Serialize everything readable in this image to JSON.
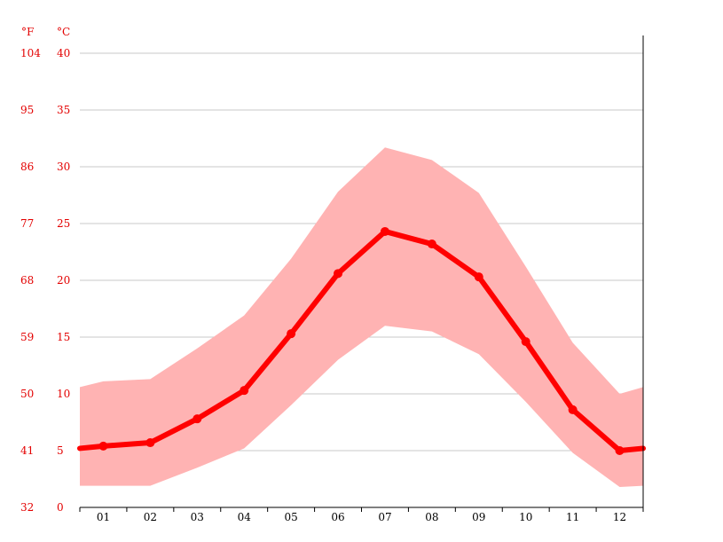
{
  "units": {
    "fahrenheit": "°F",
    "celsius": "°C"
  },
  "colors": {
    "line": "#ff0000",
    "band": "#ffb3b3",
    "axis_text": "#e30000",
    "grid": "#c8c8c8"
  },
  "chart_data": {
    "type": "area",
    "categories": [
      "01",
      "02",
      "03",
      "04",
      "05",
      "06",
      "07",
      "08",
      "09",
      "10",
      "11",
      "12"
    ],
    "y_ticks_c": [
      0,
      5,
      10,
      15,
      20,
      25,
      30,
      35,
      40
    ],
    "y_ticks_f": [
      32,
      41,
      50,
      59,
      68,
      77,
      86,
      95,
      104
    ],
    "ylim": [
      0,
      40
    ],
    "grid": true,
    "edge_values": {
      "left": {
        "mean": 5.2,
        "min": 1.9,
        "max": 10.6
      },
      "right": {
        "mean": 5.2,
        "min": 1.9,
        "max": 10.6
      }
    },
    "series": [
      {
        "values": [
          5.4,
          5.7,
          7.8,
          10.3,
          15.3,
          20.6,
          24.3,
          23.2,
          20.3,
          14.6,
          8.6,
          5.0
        ]
      },
      {
        "values": [
          1.9,
          1.9,
          3.5,
          5.2,
          9.0,
          13.0,
          16.0,
          15.5,
          13.5,
          9.3,
          4.8,
          1.8
        ]
      },
      {
        "values": [
          11.1,
          11.3,
          14.0,
          16.9,
          21.9,
          27.8,
          31.7,
          30.6,
          27.7,
          21.2,
          14.5,
          10.0
        ]
      }
    ]
  }
}
